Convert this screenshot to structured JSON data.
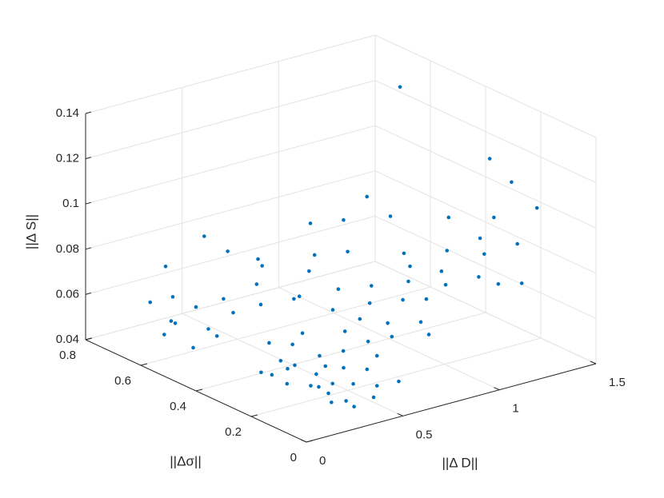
{
  "chart_data": {
    "type": "scatter3d",
    "xlabel": "||Δ D||",
    "ylabel": "||Δσ||",
    "zlabel": "||Δ S||",
    "color": "#0072bd",
    "grid": true,
    "xlim": [
      0,
      1.5
    ],
    "ylim": [
      0,
      0.8
    ],
    "zlim": [
      0.04,
      0.14
    ],
    "xticks": [
      0,
      0.5,
      1,
      1.5
    ],
    "yticks": [
      0,
      0.2,
      0.4,
      0.6,
      0.8
    ],
    "zticks": [
      0.04,
      0.06,
      0.08,
      0.1,
      0.12,
      0.14
    ],
    "x": [
      0.4,
      0.45,
      0.38,
      0.5,
      0.42,
      0.35,
      0.55,
      0.48,
      0.3,
      0.6,
      0.52,
      0.44,
      0.36,
      0.62,
      0.58,
      0.33,
      0.47,
      0.41,
      0.68,
      0.54,
      0.28,
      0.65,
      0.39,
      0.5,
      0.72,
      0.25,
      0.45,
      0.7,
      0.58,
      0.8,
      0.85,
      0.9,
      0.78,
      0.95,
      1.0,
      0.88,
      1.05,
      0.82,
      0.92,
      1.1,
      0.75,
      0.98,
      1.15,
      1.2,
      1.25,
      1.3,
      1.18,
      1.35,
      1.4,
      1.28,
      1.22,
      1.45,
      1.38,
      1.33,
      0.3,
      0.25,
      0.35,
      0.4,
      0.2,
      0.45,
      0.15,
      0.5,
      0.28,
      0.38,
      0.55,
      0.22,
      0.6,
      0.7,
      0.8,
      0.9,
      1.0,
      0.65,
      0.75,
      1.2,
      1.45,
      1.42,
      1.48,
      1.4,
      0.4,
      0.45,
      0.3,
      1.1,
      1.15,
      1.05,
      0.95
    ],
    "y": [
      0.2,
      0.22,
      0.25,
      0.18,
      0.15,
      0.2,
      0.25,
      0.3,
      0.28,
      0.2,
      0.12,
      0.35,
      0.32,
      0.3,
      0.15,
      0.14,
      0.26,
      0.38,
      0.22,
      0.33,
      0.36,
      0.12,
      0.1,
      0.4,
      0.28,
      0.3,
      0.45,
      0.35,
      0.42,
      0.25,
      0.3,
      0.4,
      0.45,
      0.25,
      0.35,
      0.5,
      0.3,
      0.38,
      0.2,
      0.4,
      0.55,
      0.45,
      0.3,
      0.35,
      0.25,
      0.4,
      0.45,
      0.3,
      0.35,
      0.2,
      0.5,
      0.25,
      0.45,
      0.15,
      0.7,
      0.65,
      0.6,
      0.68,
      0.55,
      0.58,
      0.62,
      0.65,
      0.52,
      0.75,
      0.55,
      0.72,
      0.6,
      0.65,
      0.55,
      0.6,
      0.55,
      0.5,
      0.7,
      0.5,
      0.35,
      0.25,
      0.2,
      0.3,
      0.65,
      0.6,
      0.72,
      0.55,
      0.5,
      0.6,
      0.65
    ],
    "z": [
      0.041,
      0.043,
      0.042,
      0.044,
      0.04,
      0.045,
      0.046,
      0.042,
      0.043,
      0.047,
      0.041,
      0.044,
      0.046,
      0.049,
      0.043,
      0.042,
      0.048,
      0.045,
      0.05,
      0.047,
      0.044,
      0.045,
      0.041,
      0.049,
      0.052,
      0.047,
      0.048,
      0.053,
      0.051,
      0.054,
      0.056,
      0.058,
      0.055,
      0.057,
      0.06,
      0.059,
      0.062,
      0.054,
      0.055,
      0.063,
      0.056,
      0.061,
      0.066,
      0.068,
      0.07,
      0.072,
      0.065,
      0.075,
      0.078,
      0.069,
      0.067,
      0.08,
      0.082,
      0.071,
      0.047,
      0.05,
      0.048,
      0.052,
      0.046,
      0.054,
      0.049,
      0.055,
      0.051,
      0.053,
      0.057,
      0.056,
      0.062,
      0.065,
      0.066,
      0.068,
      0.07,
      0.06,
      0.064,
      0.141,
      0.112,
      0.108,
      0.098,
      0.09,
      0.085,
      0.08,
      0.07,
      0.092,
      0.085,
      0.08,
      0.078
    ]
  }
}
